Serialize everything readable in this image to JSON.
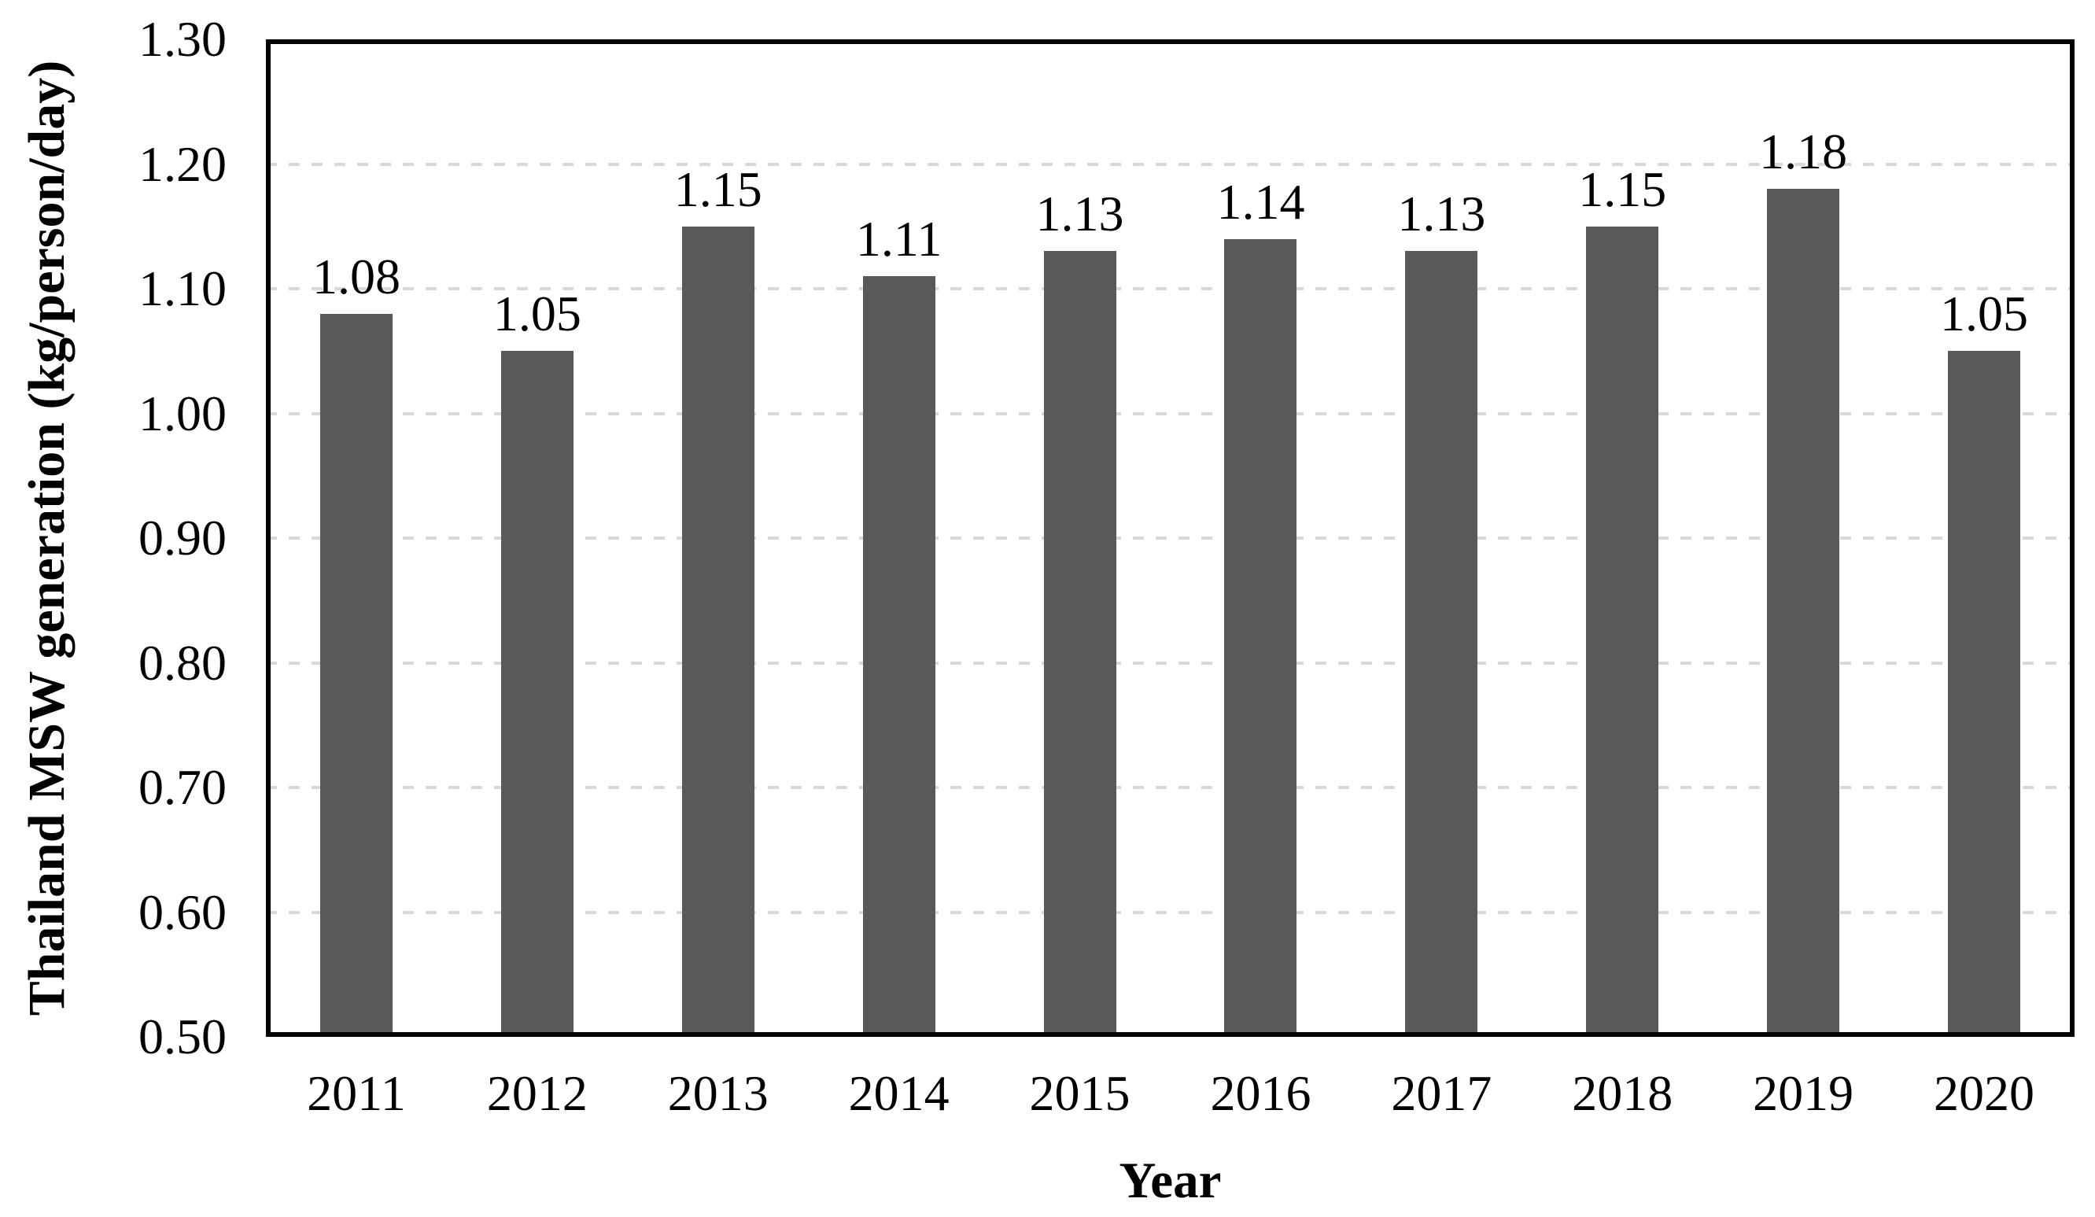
{
  "chart_data": {
    "type": "bar",
    "categories": [
      "2011",
      "2012",
      "2013",
      "2014",
      "2015",
      "2016",
      "2017",
      "2018",
      "2019",
      "2020"
    ],
    "values": [
      1.08,
      1.05,
      1.15,
      1.11,
      1.13,
      1.14,
      1.13,
      1.15,
      1.18,
      1.05
    ],
    "value_labels": [
      "1.08",
      "1.05",
      "1.15",
      "1.11",
      "1.13",
      "1.14",
      "1.13",
      "1.15",
      "1.18",
      "1.05"
    ],
    "xlabel": "Year",
    "ylabel": "Thailand MSW generation (kg/person/day)",
    "ylim": [
      0.5,
      1.3
    ],
    "ytick_step": 0.1,
    "ytick_labels": [
      "1.30",
      "1.20",
      "1.10",
      "1.00",
      "0.90",
      "0.80",
      "0.70",
      "0.60",
      "0.50"
    ],
    "grid": "horizontal-dashed",
    "legend": "none",
    "colors": {
      "bar": "#595959",
      "gridline": "#d9d9d9",
      "axis": "#000000",
      "text": "#000000"
    }
  }
}
